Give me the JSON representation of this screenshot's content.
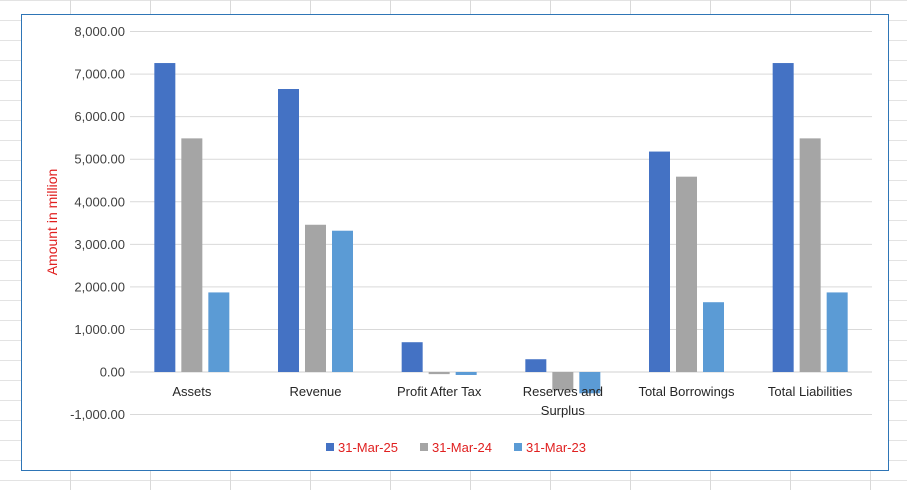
{
  "chart_data": {
    "type": "bar",
    "title": "",
    "xlabel": "",
    "ylabel": "Amount in million",
    "categories": [
      "Assets",
      "Revenue",
      "Profit After Tax",
      "Reserves and Surplus",
      "Total Borrowings",
      "Total Liabilities"
    ],
    "series": [
      {
        "name": "31-Mar-25",
        "color": "#4472c4",
        "values": [
          7260,
          6650,
          700,
          300,
          5180,
          7260
        ]
      },
      {
        "name": "31-Mar-24",
        "color": "#a5a5a5",
        "values": [
          5490,
          3460,
          -50,
          -430,
          4590,
          5490
        ]
      },
      {
        "name": "31-Mar-23",
        "color": "#5b9bd5",
        "values": [
          1870,
          3320,
          -70,
          -500,
          1640,
          1870
        ]
      }
    ],
    "ylim": [
      -1000,
      8000
    ],
    "yticks": [
      "8,000.00",
      "7,000.00",
      "6,000.00",
      "5,000.00",
      "4,000.00",
      "3,000.00",
      "2,000.00",
      "1,000.00",
      "0.00",
      "-1,000.00"
    ],
    "grid": true,
    "legend_position": "bottom"
  }
}
